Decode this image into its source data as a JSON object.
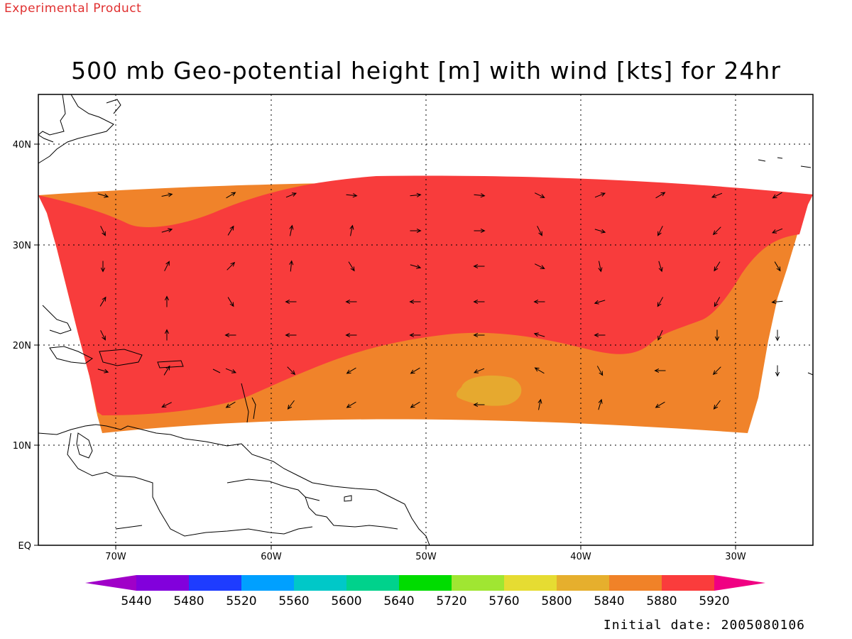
{
  "header": {
    "product_label": "Experimental Product",
    "title": "500 mb Geo-potential height [m] with wind [kts] for 24hr"
  },
  "footer": {
    "initial_date": "Initial date: 2005080106"
  },
  "map": {
    "lat_labels": [
      "40N",
      "30N",
      "20N",
      "10N",
      "EQ"
    ],
    "lon_labels": [
      "70W",
      "60W",
      "50W",
      "40W",
      "30W"
    ],
    "colors": {
      "c5880": "#f0832a",
      "c5920": "#f83c3c",
      "c5840": "#e6a92f",
      "land": "#ffffff",
      "coast": "#000000"
    }
  },
  "colorbar": {
    "levels": [
      "5440",
      "5480",
      "5520",
      "5560",
      "5600",
      "5640",
      "5720",
      "5760",
      "5800",
      "5840",
      "5880",
      "5920"
    ],
    "colors": [
      "#a000c8",
      "#8200dc",
      "#1e3cff",
      "#00a0ff",
      "#00c8c8",
      "#00d28c",
      "#00dc00",
      "#a0e632",
      "#e6dc32",
      "#e6af2d",
      "#f08228",
      "#fa3c3c",
      "#f00082"
    ]
  }
}
